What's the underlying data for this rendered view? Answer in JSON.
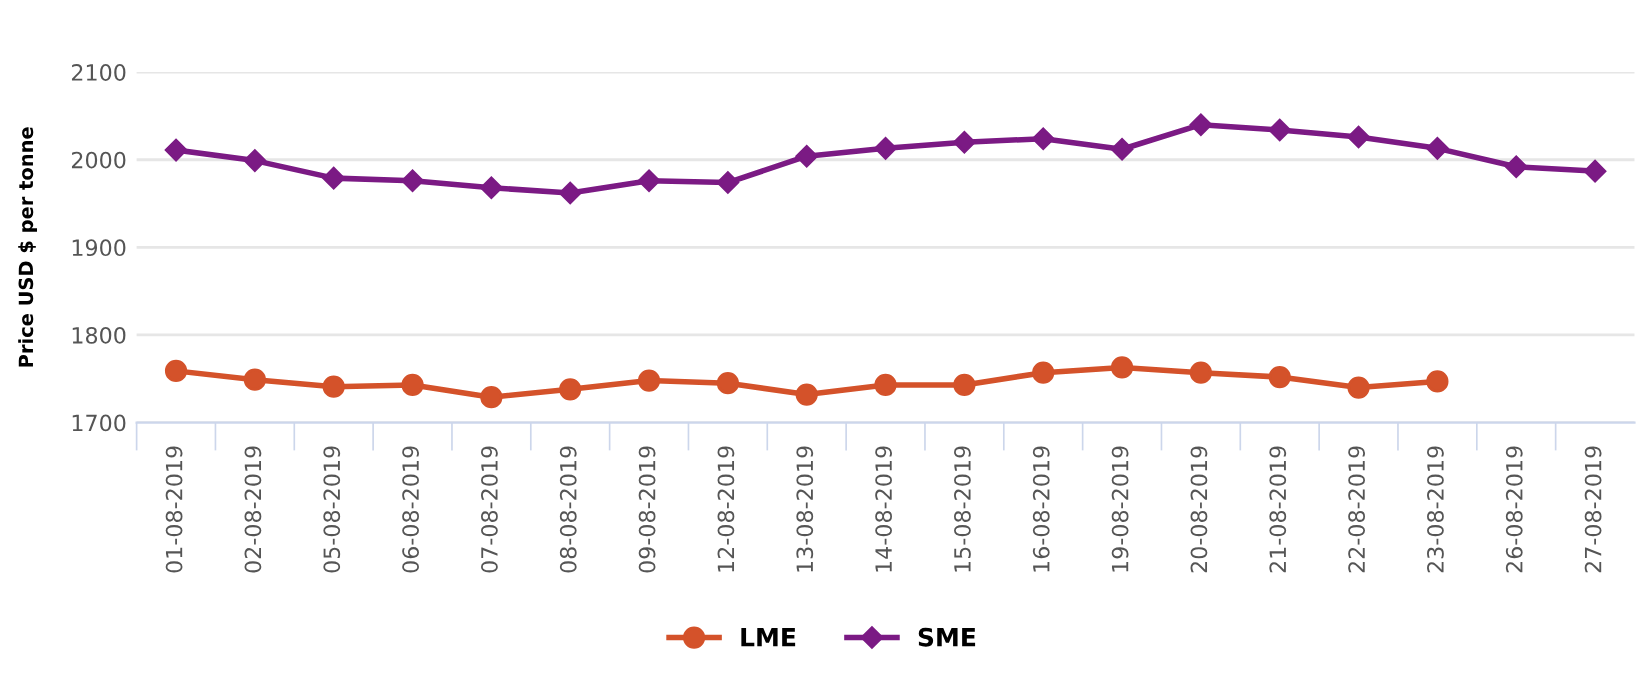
{
  "chart_data": {
    "type": "line",
    "ylabel": "Price USD $ per tonne",
    "categories": [
      "01-08-2019",
      "02-08-2019",
      "05-08-2019",
      "06-08-2019",
      "07-08-2019",
      "08-08-2019",
      "09-08-2019",
      "12-08-2019",
      "13-08-2019",
      "14-08-2019",
      "15-08-2019",
      "16-08-2019",
      "19-08-2019",
      "20-08-2019",
      "21-08-2019",
      "22-08-2019",
      "23-08-2019",
      "26-08-2019",
      "27-08-2019"
    ],
    "series": [
      {
        "name": "LME",
        "color": "#d4522a",
        "marker": "circle",
        "values": [
          1759,
          1749,
          1741,
          1743,
          1729,
          1738,
          1748,
          1745,
          1732,
          1743,
          1743,
          1757,
          1763,
          1757,
          1752,
          1740,
          1747,
          null,
          null
        ]
      },
      {
        "name": "SME",
        "color": "#7b1a84",
        "marker": "diamond",
        "values": [
          2011,
          1999,
          1979,
          1976,
          1968,
          1962,
          1976,
          1974,
          2004,
          2013,
          2020,
          2024,
          2012,
          2040,
          2034,
          2026,
          2013,
          1992,
          1987
        ]
      }
    ],
    "ylim": [
      1700,
      2100
    ],
    "yticks": [
      1700,
      1800,
      1900,
      2000,
      2100
    ],
    "grid": "y",
    "legend": "bottom"
  }
}
